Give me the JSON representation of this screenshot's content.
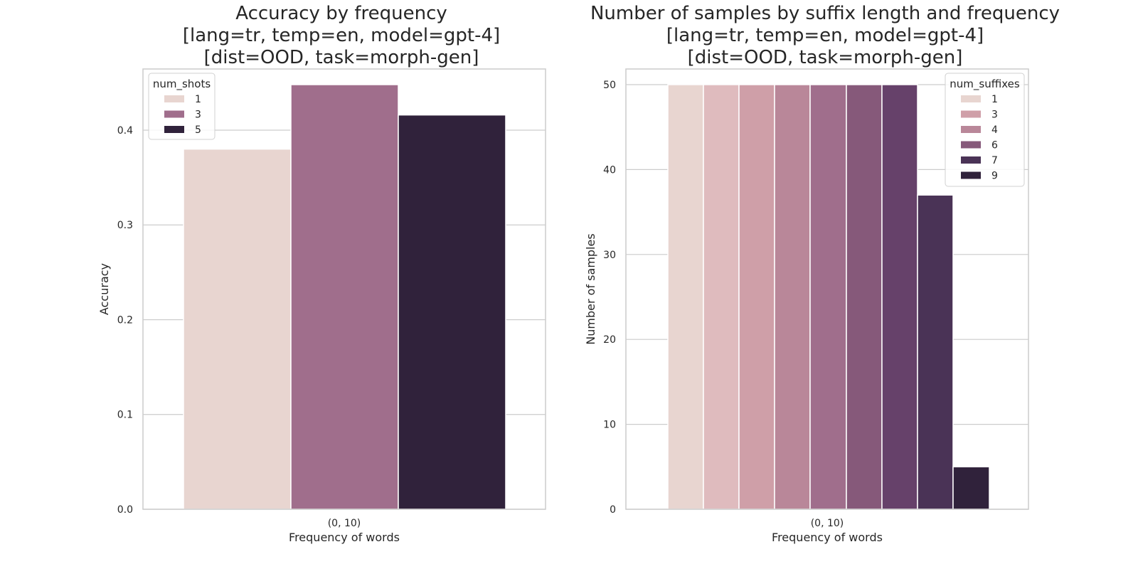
{
  "chart_data": [
    {
      "type": "bar",
      "title_lines": [
        "Accuracy by frequency",
        "[lang=tr, temp=en, model=gpt-4]",
        "[dist=OOD, task=morph-gen]"
      ],
      "xlabel": "Frequency of words",
      "ylabel": "Accuracy",
      "categories": [
        "(0, 10)"
      ],
      "ylim": [
        0,
        0.448
      ],
      "yticks": [
        0.0,
        0.1,
        0.2,
        0.3,
        0.4
      ],
      "ytick_labels": [
        "0.0",
        "0.1",
        "0.2",
        "0.3",
        "0.4"
      ],
      "grid": true,
      "legend": {
        "title": "num_shots",
        "placement": "top-left"
      },
      "series": [
        {
          "name": "1",
          "color": "#e8d5d0",
          "values": [
            0.38
          ]
        },
        {
          "name": "3",
          "color": "#a06e8c",
          "values": [
            0.448
          ]
        },
        {
          "name": "5",
          "color": "#30223b",
          "values": [
            0.416
          ]
        }
      ]
    },
    {
      "type": "bar",
      "title_lines": [
        "Number of samples by suffix length and frequency",
        "[lang=tr, temp=en, model=gpt-4]",
        "[dist=OOD, task=morph-gen]"
      ],
      "xlabel": "Frequency of words",
      "ylabel": "Number of samples",
      "categories": [
        "(0, 10)"
      ],
      "ylim": [
        0,
        50
      ],
      "yticks": [
        0,
        10,
        20,
        30,
        40,
        50
      ],
      "ytick_labels": [
        "0",
        "10",
        "20",
        "30",
        "40",
        "50"
      ],
      "grid": true,
      "legend": {
        "title": "num_suffixes",
        "placement": "top-right"
      },
      "series": [
        {
          "name": "1",
          "color": "#e8d5d0",
          "values": [
            50
          ]
        },
        {
          "name": "",
          "color": "#dfbbbe",
          "values": [
            50
          ]
        },
        {
          "name": "3",
          "color": "#cf9fa8",
          "values": [
            50
          ]
        },
        {
          "name": "4",
          "color": "#b98799",
          "values": [
            50
          ]
        },
        {
          "name": "",
          "color": "#a06e8c",
          "values": [
            50
          ]
        },
        {
          "name": "6",
          "color": "#86597a",
          "values": [
            50
          ]
        },
        {
          "name": "",
          "color": "#66416a",
          "values": [
            50
          ]
        },
        {
          "name": "7",
          "color": "#4a3356",
          "values": [
            37
          ]
        },
        {
          "name": "9",
          "color": "#30223b",
          "values": [
            5
          ]
        }
      ]
    }
  ]
}
